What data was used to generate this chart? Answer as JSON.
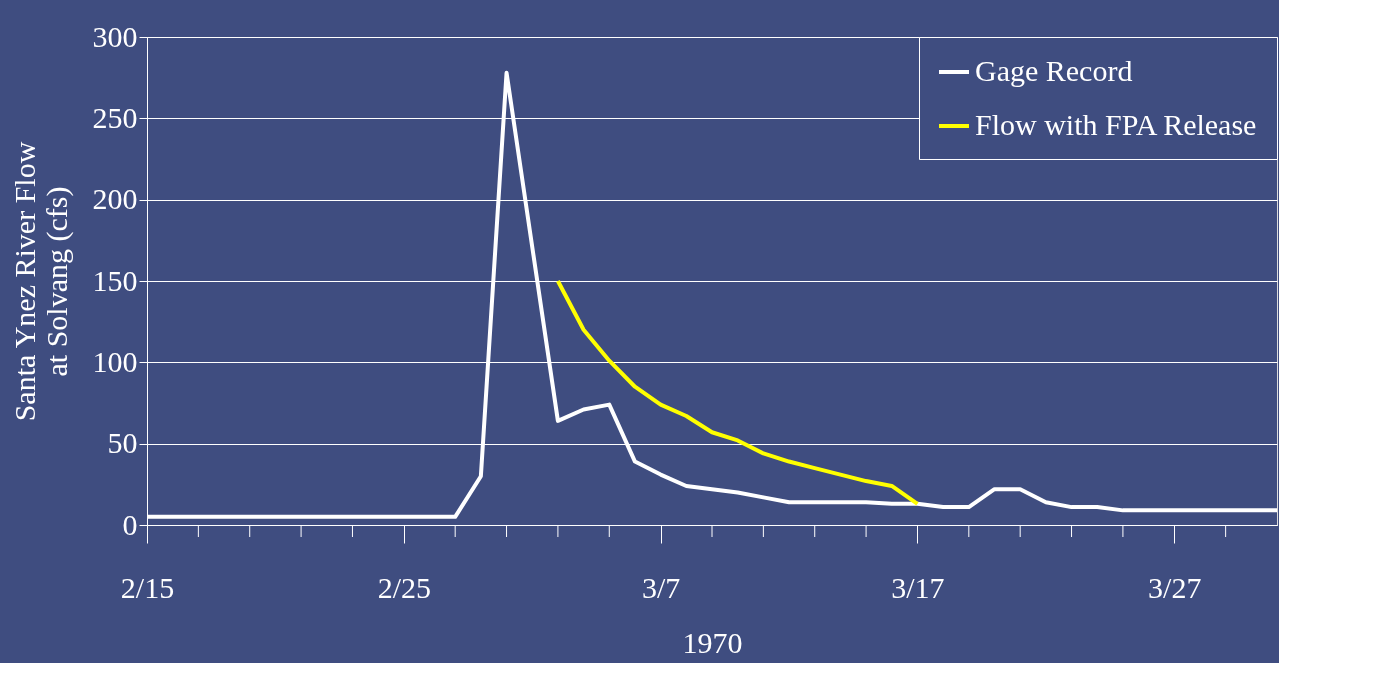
{
  "chart_data": {
    "type": "line",
    "xlabel": "1970",
    "ylabel": "Santa Ynez River Flow\nat Solvang (cfs)",
    "xlim": [
      "1970-02-15",
      "1970-03-31"
    ],
    "ylim": [
      0,
      300
    ],
    "yticks": [
      0,
      50,
      100,
      150,
      200,
      250,
      300
    ],
    "xticks": [
      {
        "value": "1970-02-15",
        "label": "2/15"
      },
      {
        "value": "1970-02-17",
        "label": null
      },
      {
        "value": "1970-02-19",
        "label": null
      },
      {
        "value": "1970-02-21",
        "label": null
      },
      {
        "value": "1970-02-23",
        "label": null
      },
      {
        "value": "1970-02-25",
        "label": "2/25"
      },
      {
        "value": "1970-02-27",
        "label": null
      },
      {
        "value": "1970-03-01",
        "label": null
      },
      {
        "value": "1970-03-03",
        "label": null
      },
      {
        "value": "1970-03-05",
        "label": null
      },
      {
        "value": "1970-03-07",
        "label": "3/7"
      },
      {
        "value": "1970-03-09",
        "label": null
      },
      {
        "value": "1970-03-11",
        "label": null
      },
      {
        "value": "1970-03-13",
        "label": null
      },
      {
        "value": "1970-03-15",
        "label": null
      },
      {
        "value": "1970-03-17",
        "label": "3/17"
      },
      {
        "value": "1970-03-19",
        "label": null
      },
      {
        "value": "1970-03-21",
        "label": null
      },
      {
        "value": "1970-03-23",
        "label": null
      },
      {
        "value": "1970-03-25",
        "label": null
      },
      {
        "value": "1970-03-27",
        "label": "3/27"
      },
      {
        "value": "1970-03-29",
        "label": null
      }
    ],
    "grid": "y",
    "legend": "top right",
    "marker": "none",
    "line_style": "solid",
    "series": [
      {
        "name": "Gage Record",
        "color": "#ffffff",
        "x": [
          "1970-02-15",
          "1970-02-16",
          "1970-02-17",
          "1970-02-18",
          "1970-02-19",
          "1970-02-20",
          "1970-02-21",
          "1970-02-22",
          "1970-02-23",
          "1970-02-24",
          "1970-02-25",
          "1970-02-26",
          "1970-02-27",
          "1970-02-28",
          "1970-03-01",
          "1970-03-03",
          "1970-03-04",
          "1970-03-05",
          "1970-03-06",
          "1970-03-07",
          "1970-03-08",
          "1970-03-09",
          "1970-03-10",
          "1970-03-11",
          "1970-03-12",
          "1970-03-13",
          "1970-03-14",
          "1970-03-15",
          "1970-03-16",
          "1970-03-17",
          "1970-03-18",
          "1970-03-19",
          "1970-03-20",
          "1970-03-21",
          "1970-03-22",
          "1970-03-23",
          "1970-03-24",
          "1970-03-25",
          "1970-03-26",
          "1970-03-27",
          "1970-03-28",
          "1970-03-29",
          "1970-03-30",
          "1970-03-31"
        ],
        "values": [
          5,
          5,
          5,
          5,
          5,
          5,
          5,
          5,
          5,
          5,
          5,
          5,
          5,
          30,
          278,
          64,
          71,
          74,
          39,
          31,
          24,
          22,
          20,
          17,
          14,
          14,
          14,
          14,
          13,
          13,
          11,
          11,
          22,
          22,
          14,
          11,
          11,
          9,
          9,
          9,
          9,
          9,
          9,
          9
        ]
      },
      {
        "name": "Flow with FPA Release",
        "color": "#ffff00",
        "x": [
          "1970-03-03",
          "1970-03-04",
          "1970-03-05",
          "1970-03-06",
          "1970-03-07",
          "1970-03-08",
          "1970-03-09",
          "1970-03-10",
          "1970-03-11",
          "1970-03-12",
          "1970-03-13",
          "1970-03-14",
          "1970-03-15",
          "1970-03-16",
          "1970-03-17"
        ],
        "values": [
          150,
          120,
          101,
          85,
          74,
          67,
          57,
          52,
          44,
          39,
          35,
          31,
          27,
          24,
          13
        ]
      }
    ]
  }
}
